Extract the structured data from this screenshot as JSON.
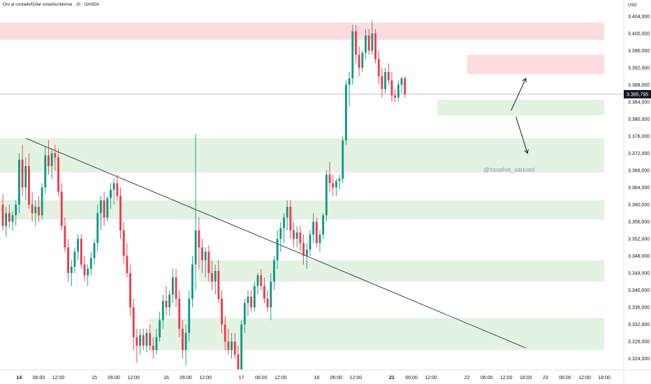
{
  "header": {
    "title": "Oro al contado/Dólar estadounidense · 1h · OANDA",
    "currency": "USD"
  },
  "price_label": "3.385,795",
  "watermark": "@ssselva_xauusd",
  "colors": {
    "up": "#089981",
    "down": "#f23645",
    "supply_zone": "#fcdcdf",
    "demand_zone": "#e3f2e2",
    "price_label_bg": "#131722"
  },
  "chart_data": {
    "type": "candlestick",
    "ylim": [
      3322.0,
      3406.5
    ],
    "y_ticks": [
      "3.404,000",
      "3.400,000",
      "3.396,000",
      "3.392,000",
      "3.388,000",
      "3.384,000",
      "3.380,000",
      "3.376,000",
      "3.372,000",
      "3.368,000",
      "3.364,000",
      "3.360,000",
      "3.356,000",
      "3.352,000",
      "3.348,000",
      "3.344,000",
      "3.340,000",
      "3.336,000",
      "3.332,000",
      "3.328,000",
      "3.324,000"
    ],
    "y_tick_values": [
      3404,
      3400,
      3396,
      3392,
      3388,
      3384,
      3380,
      3376,
      3372,
      3368,
      3364,
      3360,
      3356,
      3352,
      3348,
      3344,
      3340,
      3336,
      3332,
      3328,
      3324
    ],
    "x_ticks": [
      {
        "label": "14",
        "bar": 5,
        "bold": true
      },
      {
        "label": "06:00",
        "bar": 11
      },
      {
        "label": "12:00",
        "bar": 17
      },
      {
        "label": "15",
        "bar": 28
      },
      {
        "label": "06:00",
        "bar": 34
      },
      {
        "label": "12:00",
        "bar": 40
      },
      {
        "label": "16",
        "bar": 50
      },
      {
        "label": "06:00",
        "bar": 56
      },
      {
        "label": "12:00",
        "bar": 62
      },
      {
        "label": "17",
        "bar": 73
      },
      {
        "label": "06:00",
        "bar": 79
      },
      {
        "label": "12:00",
        "bar": 85
      },
      {
        "label": "18",
        "bar": 96
      },
      {
        "label": "06:00",
        "bar": 102
      },
      {
        "label": "12:00",
        "bar": 108
      },
      {
        "label": "21",
        "bar": 119,
        "bold": true
      },
      {
        "label": "06:00",
        "bar": 125
      },
      {
        "label": "12:00",
        "bar": 131
      },
      {
        "label": "22",
        "bar": 142
      },
      {
        "label": "06:00",
        "bar": 148
      },
      {
        "label": "12:00",
        "bar": 154
      },
      {
        "label": "18:00",
        "bar": 160
      },
      {
        "label": "23",
        "bar": 166
      },
      {
        "label": "06:00",
        "bar": 172
      },
      {
        "label": "12:00",
        "bar": 178
      },
      {
        "label": "18:00",
        "bar": 184
      }
    ],
    "current_price": 3385.795,
    "zones": [
      {
        "type": "supply",
        "x0": -1,
        "x1": 184,
        "y0": 3398.5,
        "y1": 3402.5
      },
      {
        "type": "supply",
        "x0": 142,
        "x1": 184,
        "y0": 3390.5,
        "y1": 3395.0
      },
      {
        "type": "demand",
        "x0": 133,
        "x1": 184,
        "y0": 3380.8,
        "y1": 3384.5
      },
      {
        "type": "demand",
        "x0": -1,
        "x1": 184,
        "y0": 3367.5,
        "y1": 3375.5
      },
      {
        "type": "demand",
        "x0": -1,
        "x1": 184,
        "y0": 3356.5,
        "y1": 3361.0
      },
      {
        "type": "demand",
        "x0": 60,
        "x1": 184,
        "y0": 3342.0,
        "y1": 3347.0
      },
      {
        "type": "demand",
        "x0": 45,
        "x1": 184,
        "y0": 3326.0,
        "y1": 3333.5
      }
    ],
    "trendline": {
      "x0": 7,
      "y0": 3375.5,
      "x1": 160,
      "y1": 3326.5
    },
    "arrows": [
      {
        "x0": 155.5,
        "y0": 3382.0,
        "x1": 160,
        "y1": 3389.5
      },
      {
        "x0": 157,
        "y0": 3380.5,
        "x1": 160.5,
        "y1": 3372.0
      }
    ],
    "candles": [
      {
        "o": 3360,
        "h": 3362.5,
        "l": 3354,
        "c": 3355
      },
      {
        "o": 3355,
        "h": 3359.5,
        "l": 3352.5,
        "c": 3358
      },
      {
        "o": 3358,
        "h": 3360,
        "l": 3354.5,
        "c": 3356
      },
      {
        "o": 3356,
        "h": 3358.5,
        "l": 3354,
        "c": 3357.5
      },
      {
        "o": 3357.5,
        "h": 3361,
        "l": 3355,
        "c": 3360
      },
      {
        "o": 3360,
        "h": 3372,
        "l": 3358,
        "c": 3370.5
      },
      {
        "o": 3370.5,
        "h": 3374,
        "l": 3362,
        "c": 3364
      },
      {
        "o": 3364,
        "h": 3371,
        "l": 3361,
        "c": 3369
      },
      {
        "o": 3369,
        "h": 3372,
        "l": 3359,
        "c": 3360
      },
      {
        "o": 3360,
        "h": 3363,
        "l": 3356,
        "c": 3358
      },
      {
        "o": 3358,
        "h": 3361,
        "l": 3355,
        "c": 3359.5
      },
      {
        "o": 3359.5,
        "h": 3362,
        "l": 3356,
        "c": 3357.5
      },
      {
        "o": 3357.5,
        "h": 3365,
        "l": 3356.5,
        "c": 3364
      },
      {
        "o": 3364,
        "h": 3373.5,
        "l": 3362.5,
        "c": 3371.5
      },
      {
        "o": 3371.5,
        "h": 3375,
        "l": 3367,
        "c": 3369
      },
      {
        "o": 3369,
        "h": 3373,
        "l": 3366,
        "c": 3372
      },
      {
        "o": 3372,
        "h": 3374,
        "l": 3368,
        "c": 3371
      },
      {
        "o": 3371,
        "h": 3373,
        "l": 3362,
        "c": 3363
      },
      {
        "o": 3363,
        "h": 3365,
        "l": 3354,
        "c": 3355
      },
      {
        "o": 3355,
        "h": 3357,
        "l": 3349,
        "c": 3350
      },
      {
        "o": 3350,
        "h": 3352,
        "l": 3342,
        "c": 3344
      },
      {
        "o": 3344,
        "h": 3347,
        "l": 3341,
        "c": 3345.5
      },
      {
        "o": 3345.5,
        "h": 3350,
        "l": 3344,
        "c": 3349
      },
      {
        "o": 3349,
        "h": 3353,
        "l": 3347,
        "c": 3352
      },
      {
        "o": 3352,
        "h": 3353,
        "l": 3345,
        "c": 3346
      },
      {
        "o": 3346,
        "h": 3348,
        "l": 3342,
        "c": 3343.5
      },
      {
        "o": 3343.5,
        "h": 3346,
        "l": 3341,
        "c": 3345
      },
      {
        "o": 3345,
        "h": 3349,
        "l": 3343.5,
        "c": 3347.5
      },
      {
        "o": 3347.5,
        "h": 3352,
        "l": 3346,
        "c": 3351
      },
      {
        "o": 3351,
        "h": 3360,
        "l": 3349,
        "c": 3358
      },
      {
        "o": 3358,
        "h": 3362,
        "l": 3354,
        "c": 3361
      },
      {
        "o": 3361,
        "h": 3363,
        "l": 3355,
        "c": 3357
      },
      {
        "o": 3357,
        "h": 3362,
        "l": 3356,
        "c": 3361.5
      },
      {
        "o": 3361.5,
        "h": 3365,
        "l": 3359,
        "c": 3363.5
      },
      {
        "o": 3363.5,
        "h": 3366,
        "l": 3360,
        "c": 3365
      },
      {
        "o": 3365,
        "h": 3367,
        "l": 3361,
        "c": 3362
      },
      {
        "o": 3362,
        "h": 3364,
        "l": 3352,
        "c": 3354
      },
      {
        "o": 3354,
        "h": 3356,
        "l": 3346,
        "c": 3348
      },
      {
        "o": 3348,
        "h": 3351,
        "l": 3343,
        "c": 3344
      },
      {
        "o": 3344,
        "h": 3346,
        "l": 3334,
        "c": 3336
      },
      {
        "o": 3336,
        "h": 3338,
        "l": 3326,
        "c": 3329
      },
      {
        "o": 3329,
        "h": 3331,
        "l": 3323,
        "c": 3327
      },
      {
        "o": 3327,
        "h": 3331,
        "l": 3325,
        "c": 3329.5
      },
      {
        "o": 3329.5,
        "h": 3331,
        "l": 3326,
        "c": 3327
      },
      {
        "o": 3327,
        "h": 3331,
        "l": 3325.5,
        "c": 3330
      },
      {
        "o": 3330,
        "h": 3332,
        "l": 3326,
        "c": 3327
      },
      {
        "o": 3327,
        "h": 3329,
        "l": 3324,
        "c": 3326
      },
      {
        "o": 3326,
        "h": 3331,
        "l": 3325,
        "c": 3329
      },
      {
        "o": 3329,
        "h": 3335,
        "l": 3328,
        "c": 3333
      },
      {
        "o": 3333,
        "h": 3339,
        "l": 3331,
        "c": 3337.5
      },
      {
        "o": 3337.5,
        "h": 3341,
        "l": 3334,
        "c": 3336
      },
      {
        "o": 3336,
        "h": 3340,
        "l": 3334,
        "c": 3339
      },
      {
        "o": 3339,
        "h": 3345,
        "l": 3337,
        "c": 3343
      },
      {
        "o": 3343,
        "h": 3345,
        "l": 3336,
        "c": 3338
      },
      {
        "o": 3338,
        "h": 3340,
        "l": 3329,
        "c": 3331
      },
      {
        "o": 3331,
        "h": 3333,
        "l": 3324,
        "c": 3326
      },
      {
        "o": 3326,
        "h": 3332,
        "l": 3322.5,
        "c": 3330
      },
      {
        "o": 3330,
        "h": 3340,
        "l": 3328,
        "c": 3338
      },
      {
        "o": 3338,
        "h": 3348,
        "l": 3336,
        "c": 3346
      },
      {
        "o": 3346,
        "h": 3376.5,
        "l": 3340,
        "c": 3354
      },
      {
        "o": 3354,
        "h": 3357,
        "l": 3345,
        "c": 3350
      },
      {
        "o": 3350,
        "h": 3352,
        "l": 3344,
        "c": 3347
      },
      {
        "o": 3347,
        "h": 3350,
        "l": 3343,
        "c": 3349
      },
      {
        "o": 3349,
        "h": 3350.5,
        "l": 3342,
        "c": 3344
      },
      {
        "o": 3344,
        "h": 3347,
        "l": 3340,
        "c": 3342
      },
      {
        "o": 3342,
        "h": 3346,
        "l": 3339,
        "c": 3344.5
      },
      {
        "o": 3344.5,
        "h": 3347,
        "l": 3337,
        "c": 3338
      },
      {
        "o": 3338,
        "h": 3340,
        "l": 3330,
        "c": 3332
      },
      {
        "o": 3332,
        "h": 3334,
        "l": 3326,
        "c": 3328
      },
      {
        "o": 3328,
        "h": 3331,
        "l": 3325,
        "c": 3326
      },
      {
        "o": 3326,
        "h": 3330,
        "l": 3324,
        "c": 3328
      },
      {
        "o": 3328,
        "h": 3330,
        "l": 3324,
        "c": 3325
      },
      {
        "o": 3325,
        "h": 3327,
        "l": 3320,
        "c": 3321.5
      },
      {
        "o": 3321.5,
        "h": 3333,
        "l": 3320.5,
        "c": 3332
      },
      {
        "o": 3332,
        "h": 3338,
        "l": 3330,
        "c": 3337
      },
      {
        "o": 3337,
        "h": 3340,
        "l": 3334,
        "c": 3338.5
      },
      {
        "o": 3338.5,
        "h": 3340,
        "l": 3335,
        "c": 3336
      },
      {
        "o": 3336,
        "h": 3342,
        "l": 3335,
        "c": 3341
      },
      {
        "o": 3341,
        "h": 3344,
        "l": 3339,
        "c": 3343.5
      },
      {
        "o": 3343.5,
        "h": 3345,
        "l": 3340,
        "c": 3341
      },
      {
        "o": 3341,
        "h": 3343,
        "l": 3337,
        "c": 3338
      },
      {
        "o": 3338,
        "h": 3340,
        "l": 3335,
        "c": 3336
      },
      {
        "o": 3336,
        "h": 3344,
        "l": 3333,
        "c": 3342
      },
      {
        "o": 3342,
        "h": 3348,
        "l": 3340,
        "c": 3347
      },
      {
        "o": 3347,
        "h": 3354,
        "l": 3345,
        "c": 3352
      },
      {
        "o": 3352,
        "h": 3356,
        "l": 3349,
        "c": 3354.5
      },
      {
        "o": 3354.5,
        "h": 3358,
        "l": 3351,
        "c": 3357
      },
      {
        "o": 3357,
        "h": 3361,
        "l": 3354,
        "c": 3359.5
      },
      {
        "o": 3359.5,
        "h": 3361,
        "l": 3352,
        "c": 3354
      },
      {
        "o": 3354,
        "h": 3356,
        "l": 3350,
        "c": 3352
      },
      {
        "o": 3352,
        "h": 3355,
        "l": 3350,
        "c": 3353.5
      },
      {
        "o": 3353.5,
        "h": 3355,
        "l": 3349,
        "c": 3351
      },
      {
        "o": 3351,
        "h": 3353,
        "l": 3346,
        "c": 3348
      },
      {
        "o": 3348,
        "h": 3351,
        "l": 3345,
        "c": 3349.5
      },
      {
        "o": 3349.5,
        "h": 3354,
        "l": 3348,
        "c": 3353
      },
      {
        "o": 3353,
        "h": 3358,
        "l": 3351,
        "c": 3356
      },
      {
        "o": 3356,
        "h": 3357,
        "l": 3350,
        "c": 3351
      },
      {
        "o": 3351,
        "h": 3354,
        "l": 3349,
        "c": 3353
      },
      {
        "o": 3353,
        "h": 3358,
        "l": 3352,
        "c": 3357.5
      },
      {
        "o": 3357.5,
        "h": 3368,
        "l": 3356,
        "c": 3367
      },
      {
        "o": 3367,
        "h": 3370,
        "l": 3363,
        "c": 3365
      },
      {
        "o": 3365,
        "h": 3367,
        "l": 3362,
        "c": 3364
      },
      {
        "o": 3364,
        "h": 3366,
        "l": 3362,
        "c": 3365.5
      },
      {
        "o": 3365.5,
        "h": 3367,
        "l": 3363.5,
        "c": 3366
      },
      {
        "o": 3366,
        "h": 3376,
        "l": 3365,
        "c": 3375
      },
      {
        "o": 3375,
        "h": 3389,
        "l": 3374,
        "c": 3388
      },
      {
        "o": 3388,
        "h": 3391,
        "l": 3383,
        "c": 3389.5
      },
      {
        "o": 3389.5,
        "h": 3402,
        "l": 3388,
        "c": 3400.5
      },
      {
        "o": 3400.5,
        "h": 3402,
        "l": 3393,
        "c": 3395
      },
      {
        "o": 3395,
        "h": 3397,
        "l": 3390,
        "c": 3392
      },
      {
        "o": 3392,
        "h": 3396,
        "l": 3391,
        "c": 3395.5
      },
      {
        "o": 3395.5,
        "h": 3401,
        "l": 3394,
        "c": 3399.5
      },
      {
        "o": 3399.5,
        "h": 3401,
        "l": 3395,
        "c": 3396
      },
      {
        "o": 3396,
        "h": 3403,
        "l": 3395,
        "c": 3400
      },
      {
        "o": 3400,
        "h": 3401,
        "l": 3393,
        "c": 3394
      },
      {
        "o": 3394,
        "h": 3396,
        "l": 3388,
        "c": 3390
      },
      {
        "o": 3390,
        "h": 3392,
        "l": 3385,
        "c": 3387
      },
      {
        "o": 3387,
        "h": 3392,
        "l": 3386,
        "c": 3391
      },
      {
        "o": 3391,
        "h": 3393,
        "l": 3388,
        "c": 3389
      },
      {
        "o": 3389,
        "h": 3391,
        "l": 3384,
        "c": 3385.5
      },
      {
        "o": 3385.5,
        "h": 3387,
        "l": 3384,
        "c": 3385
      },
      {
        "o": 3385,
        "h": 3389,
        "l": 3384,
        "c": 3388
      },
      {
        "o": 3388,
        "h": 3390,
        "l": 3386,
        "c": 3389.5
      },
      {
        "o": 3389.5,
        "h": 3390,
        "l": 3385,
        "c": 3385.8
      }
    ],
    "candle_bars": [
      0,
      1,
      2,
      3,
      4,
      5,
      6,
      7,
      8,
      9,
      10,
      11,
      12,
      13,
      14,
      15,
      16,
      17,
      18,
      19,
      20,
      21,
      22,
      23,
      24,
      25,
      26,
      27,
      28,
      29,
      30,
      31,
      32,
      33,
      34,
      35,
      36,
      37,
      38,
      39,
      40,
      41,
      42,
      43,
      44,
      45,
      46,
      47,
      48,
      49,
      50,
      51,
      52,
      53,
      54,
      55,
      56,
      57,
      58,
      59,
      60,
      61,
      62,
      63,
      64,
      65,
      66,
      67,
      68,
      69,
      70,
      71,
      72,
      73,
      74,
      75,
      76,
      77,
      78,
      79,
      80,
      81,
      82,
      83,
      84,
      85,
      86,
      87,
      88,
      89,
      90,
      91,
      92,
      93,
      94,
      95,
      96,
      97,
      98,
      99,
      100,
      101,
      102,
      103,
      104,
      105,
      106,
      107,
      108,
      109,
      110,
      111,
      112,
      113,
      114,
      115,
      116,
      117,
      118,
      119,
      120,
      121,
      122,
      123,
      124,
      125,
      126,
      127,
      128,
      129,
      130,
      131,
      132,
      133,
      134,
      135,
      136,
      137,
      138,
      139,
      140,
      141,
      142,
      143,
      144,
      145,
      146,
      147,
      148,
      149,
      150
    ]
  }
}
